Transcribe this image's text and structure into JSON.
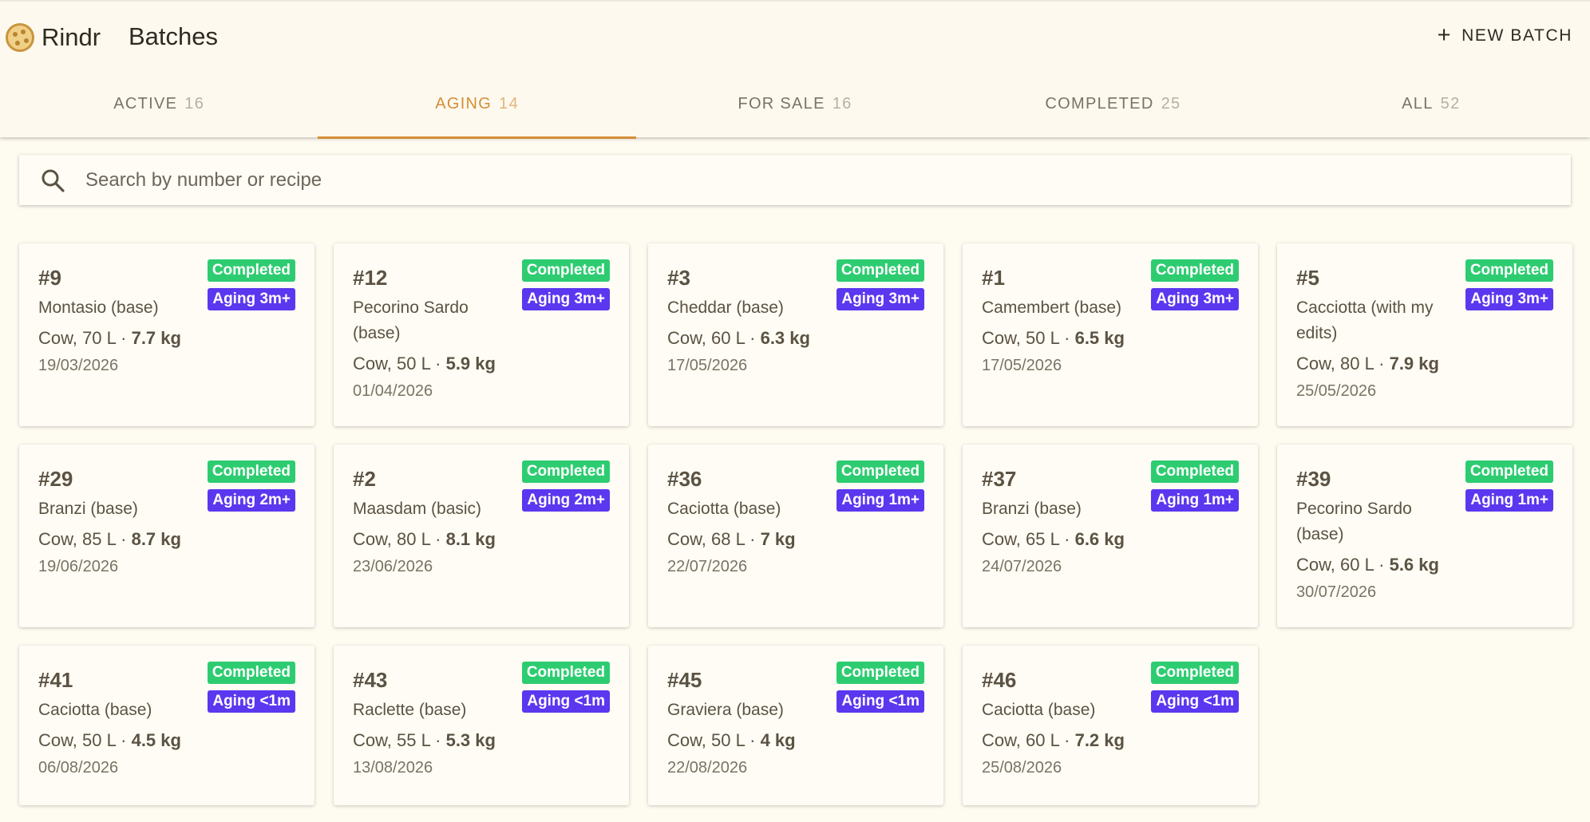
{
  "app": {
    "name": "Rindr",
    "page_title": "Batches",
    "new_batch_label": "NEW BATCH"
  },
  "tabs": [
    {
      "label": "ACTIVE",
      "count": "16",
      "active": false
    },
    {
      "label": "AGING",
      "count": "14",
      "active": true
    },
    {
      "label": "FOR SALE",
      "count": "16",
      "active": false
    },
    {
      "label": "COMPLETED",
      "count": "25",
      "active": false
    },
    {
      "label": "ALL",
      "count": "52",
      "active": false
    }
  ],
  "search": {
    "placeholder": "Search by number or recipe",
    "value": ""
  },
  "colors": {
    "accent": "#d48e37",
    "completed_badge": "#2ecc71",
    "aging_badge": "#5b37ef",
    "background": "#fefbf1"
  },
  "batches": [
    {
      "number": "#9",
      "recipe": "Montasio (base)",
      "status": "Completed",
      "aging": "Aging 3m+",
      "milk": "Cow, 70 L · ",
      "weight": "7.7 kg",
      "date": "19/03/2026"
    },
    {
      "number": "#12",
      "recipe": "Pecorino Sardo (base)",
      "status": "Completed",
      "aging": "Aging 3m+",
      "milk": "Cow, 50 L · ",
      "weight": "5.9 kg",
      "date": "01/04/2026"
    },
    {
      "number": "#3",
      "recipe": "Cheddar (base)",
      "status": "Completed",
      "aging": "Aging 3m+",
      "milk": "Cow, 60 L · ",
      "weight": "6.3 kg",
      "date": "17/05/2026"
    },
    {
      "number": "#1",
      "recipe": "Camembert (base)",
      "status": "Completed",
      "aging": "Aging 3m+",
      "milk": "Cow, 50 L · ",
      "weight": "6.5 kg",
      "date": "17/05/2026"
    },
    {
      "number": "#5",
      "recipe": "Cacciotta (with my edits)",
      "status": "Completed",
      "aging": "Aging 3m+",
      "milk": "Cow, 80 L · ",
      "weight": "7.9 kg",
      "date": "25/05/2026"
    },
    {
      "number": "#29",
      "recipe": "Branzi (base)",
      "status": "Completed",
      "aging": "Aging 2m+",
      "milk": "Cow, 85 L · ",
      "weight": "8.7 kg",
      "date": "19/06/2026"
    },
    {
      "number": "#2",
      "recipe": "Maasdam (basic)",
      "status": "Completed",
      "aging": "Aging 2m+",
      "milk": "Cow, 80 L · ",
      "weight": "8.1 kg",
      "date": "23/06/2026"
    },
    {
      "number": "#36",
      "recipe": "Caciotta (base)",
      "status": "Completed",
      "aging": "Aging 1m+",
      "milk": "Cow, 68 L · ",
      "weight": "7 kg",
      "date": "22/07/2026"
    },
    {
      "number": "#37",
      "recipe": "Branzi (base)",
      "status": "Completed",
      "aging": "Aging 1m+",
      "milk": "Cow, 65 L · ",
      "weight": "6.6 kg",
      "date": "24/07/2026"
    },
    {
      "number": "#39",
      "recipe": "Pecorino Sardo (base)",
      "status": "Completed",
      "aging": "Aging 1m+",
      "milk": "Cow, 60 L · ",
      "weight": "5.6 kg",
      "date": "30/07/2026"
    },
    {
      "number": "#41",
      "recipe": "Caciotta (base)",
      "status": "Completed",
      "aging": "Aging <1m",
      "milk": "Cow, 50 L · ",
      "weight": "4.5 kg",
      "date": "06/08/2026"
    },
    {
      "number": "#43",
      "recipe": "Raclette (base)",
      "status": "Completed",
      "aging": "Aging <1m",
      "milk": "Cow, 55 L · ",
      "weight": "5.3 kg",
      "date": "13/08/2026"
    },
    {
      "number": "#45",
      "recipe": "Graviera (base)",
      "status": "Completed",
      "aging": "Aging <1m",
      "milk": "Cow, 50 L · ",
      "weight": "4 kg",
      "date": "22/08/2026"
    },
    {
      "number": "#46",
      "recipe": "Caciotta (base)",
      "status": "Completed",
      "aging": "Aging <1m",
      "milk": "Cow, 60 L · ",
      "weight": "7.2 kg",
      "date": "25/08/2026"
    }
  ]
}
